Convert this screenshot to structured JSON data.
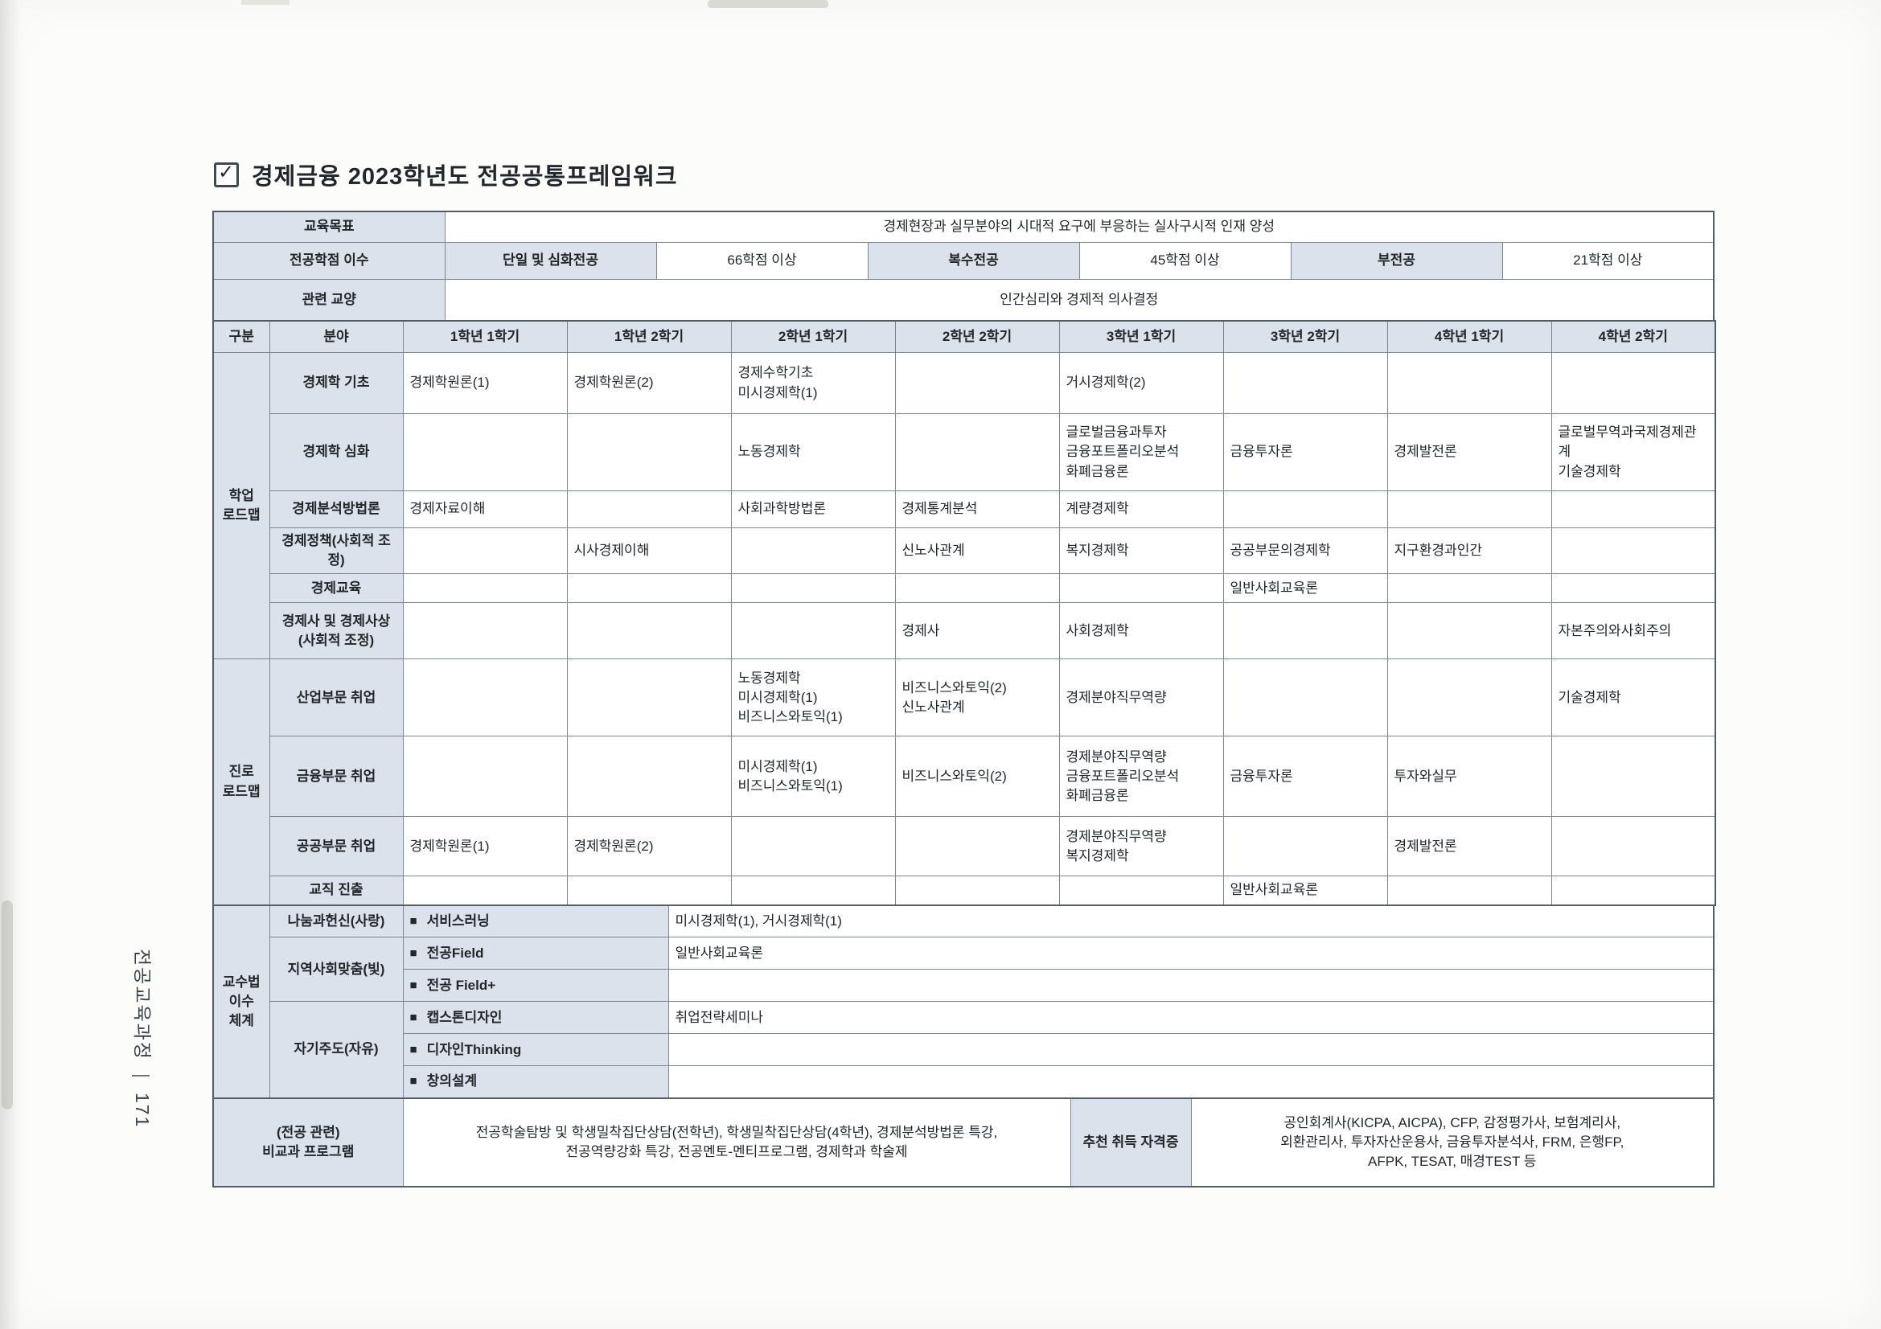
{
  "colors": {
    "header_fill": "#dbe2ec",
    "border_dark": "#555c65",
    "border_light": "#7e858e",
    "text": "#22262b"
  },
  "side": {
    "text": "전공교육과정",
    "divider": "|",
    "page_number": "171"
  },
  "title": {
    "checkbox_glyph": "✓",
    "text": "경제금융 2023학년도 전공공통프레임워크"
  },
  "summary": {
    "goal_label": "교육목표",
    "goal_value": "경제현장과 실무분야의 시대적 요구에 부응하는 실사구시적 인재 양성",
    "credits_label": "전공학점 이수",
    "credits_cells": [
      {
        "label": "단일 및 심화전공",
        "value": "66학점 이상"
      },
      {
        "label": "복수전공",
        "value": "45학점 이상"
      },
      {
        "label": "부전공",
        "value": "21학점 이상"
      }
    ],
    "liberal_label": "관련 교양",
    "liberal_value": "인간심리와 경제적 의사결정"
  },
  "grid": {
    "headers": [
      "구분",
      "분야",
      "1학년 1학기",
      "1학년 2학기",
      "2학년 1학기",
      "2학년 2학기",
      "3학년 1학기",
      "3학년 2학기",
      "4학년 1학기",
      "4학년 2학기"
    ],
    "groups": [
      {
        "label": "학업\n로드맵",
        "rows": [
          {
            "field": "경제학 기초",
            "cells": [
              "경제학원론(1)",
              "경제학원론(2)",
              "경제수학기초\n미시경제학(1)",
              "",
              "거시경제학(2)",
              "",
              "",
              ""
            ]
          },
          {
            "field": "경제학 심화",
            "cells": [
              "",
              "",
              "노동경제학",
              "",
              "글로벌금융과투자\n금융포트폴리오분석\n화폐금융론",
              "금융투자론",
              "경제발전론",
              "글로벌무역과국제경제관계\n기술경제학"
            ]
          },
          {
            "field": "경제분석방법론",
            "cells": [
              "경제자료이해",
              "",
              "사회과학방법론",
              "경제통계분석",
              "계량경제학",
              "",
              "",
              ""
            ]
          },
          {
            "field": "경제정책(사회적 조정)",
            "cells": [
              "",
              "시사경제이해",
              "",
              "신노사관계",
              "복지경제학",
              "공공부문의경제학",
              "지구환경과인간",
              ""
            ]
          },
          {
            "field": "경제교육",
            "cells": [
              "",
              "",
              "",
              "",
              "",
              "일반사회교육론",
              "",
              ""
            ]
          },
          {
            "field": "경제사 및 경제사상\n(사회적 조정)",
            "cells": [
              "",
              "",
              "",
              "경제사",
              "사회경제학",
              "",
              "",
              "자본주의와사회주의"
            ]
          }
        ]
      },
      {
        "label": "진로\n로드맵",
        "rows": [
          {
            "field": "산업부문 취업",
            "cells": [
              "",
              "",
              "노동경제학\n미시경제학(1)\n비즈니스와토익(1)",
              "비즈니스와토익(2)\n신노사관계",
              "경제분야직무역량",
              "",
              "",
              "기술경제학"
            ]
          },
          {
            "field": "금융부문 취업",
            "cells": [
              "",
              "",
              "미시경제학(1)\n비즈니스와토익(1)",
              "비즈니스와토익(2)",
              "경제분야직무역량\n금융포트폴리오분석\n화폐금융론",
              "금융투자론",
              "투자와실무",
              ""
            ]
          },
          {
            "field": "공공부문 취업",
            "cells": [
              "경제학원론(1)",
              "경제학원론(2)",
              "",
              "",
              "경제분야직무역량\n복지경제학",
              "",
              "경제발전론",
              ""
            ]
          },
          {
            "field": "교직 진출",
            "cells": [
              "",
              "",
              "",
              "",
              "",
              "일반사회교육론",
              "",
              ""
            ]
          }
        ]
      }
    ]
  },
  "pedagogy": {
    "group_label": "교수법\n이수\n체계",
    "bullet": "■",
    "rows": [
      {
        "category": "나눔과헌신(사랑)",
        "span": 1,
        "method": "서비스러닝",
        "value": "미시경제학(1), 거시경제학(1)"
      },
      {
        "category": "지역사회맞춤(빛)",
        "span": 2,
        "method": "전공Field",
        "value": "일반사회교육론"
      },
      {
        "method": "전공 Field+",
        "value": ""
      },
      {
        "category": "자기주도(자유)",
        "span": 3,
        "method": "캡스톤디자인",
        "value": "취업전략세미나"
      },
      {
        "method": "디자인Thinking",
        "value": ""
      },
      {
        "method": "창의설계",
        "value": ""
      }
    ]
  },
  "extras": {
    "program_label": "(전공 관련)\n비교과 프로그램",
    "program_value": "전공학술탐방 및 학생밀착집단상담(전학년), 학생밀착집단상담(4학년), 경제분석방법론 특강,\n전공역량강화 특강, 전공멘토-멘티프로그램, 경제학과 학술제",
    "cert_label": "추천 취득 자격증",
    "cert_value": "공인회계사(KICPA, AICPA), CFP, 감정평가사, 보험계리사,\n외환관리사, 투자자산운용사, 금융투자분석사, FRM, 은행FP,\nAFPK, TESAT, 매경TEST 등"
  }
}
